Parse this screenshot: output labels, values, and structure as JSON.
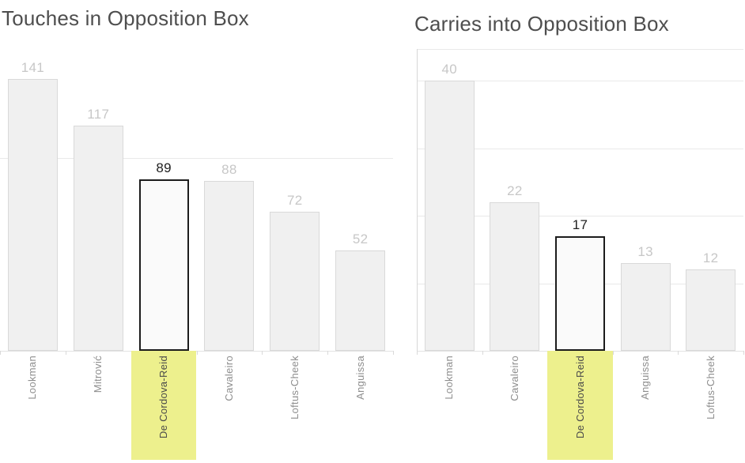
{
  "chart_data": [
    {
      "type": "bar",
      "title": "Touches in Opposition Box",
      "categories": [
        "Lookman",
        "Mitrović",
        "De Cordova-Reid",
        "Cavaleiro",
        "Loftus-Cheek",
        "Anguissa"
      ],
      "values": [
        141,
        117,
        89,
        88,
        72,
        52
      ],
      "value_labels": [
        "141",
        "117",
        "89",
        "88",
        "72",
        "52"
      ],
      "highlight_index": 2,
      "highlighted_category": "De Cordova-Reid",
      "xlabel": "",
      "ylabel": "",
      "ylim": [
        0,
        157
      ],
      "gridline_values": [
        100
      ],
      "grid": "horizontal",
      "legend": "none",
      "left_axis_line": false,
      "top_border": false
    },
    {
      "type": "bar",
      "title": "Carries into Opposition Box",
      "categories": [
        "Lookman",
        "Cavaleiro",
        "De Cordova-Reid",
        "Anguissa",
        "Loftus-Cheek"
      ],
      "values": [
        40,
        22,
        17,
        13,
        12
      ],
      "value_labels": [
        "40",
        "22",
        "17",
        "13",
        "12"
      ],
      "highlight_index": 2,
      "highlighted_category": "De Cordova-Reid",
      "xlabel": "",
      "ylabel": "",
      "ylim": [
        0,
        45
      ],
      "gridline_values": [
        10,
        20,
        30,
        40
      ],
      "grid": "horizontal",
      "legend": "none",
      "left_axis_line": true,
      "top_border": true
    }
  ],
  "colors": {
    "background": "#ffffff",
    "title": "#4e4e4e",
    "bar_fill": "#f0f0f0",
    "bar_border": "#d9d9d9",
    "highlight_bar_fill": "#fafafa",
    "highlight_bar_border": "#1c1c1c",
    "gridline": "#e9e9e9",
    "axis_line": "#d7d7d7",
    "baseline": "#e3e3e3",
    "tick": "#d9d9d9",
    "value_label": "#c7c7c7",
    "value_label_highlight": "#212121",
    "category_label": "#8e8e8e",
    "category_label_highlight": "#4a4a4a",
    "highlight_background": "#edf08d"
  }
}
